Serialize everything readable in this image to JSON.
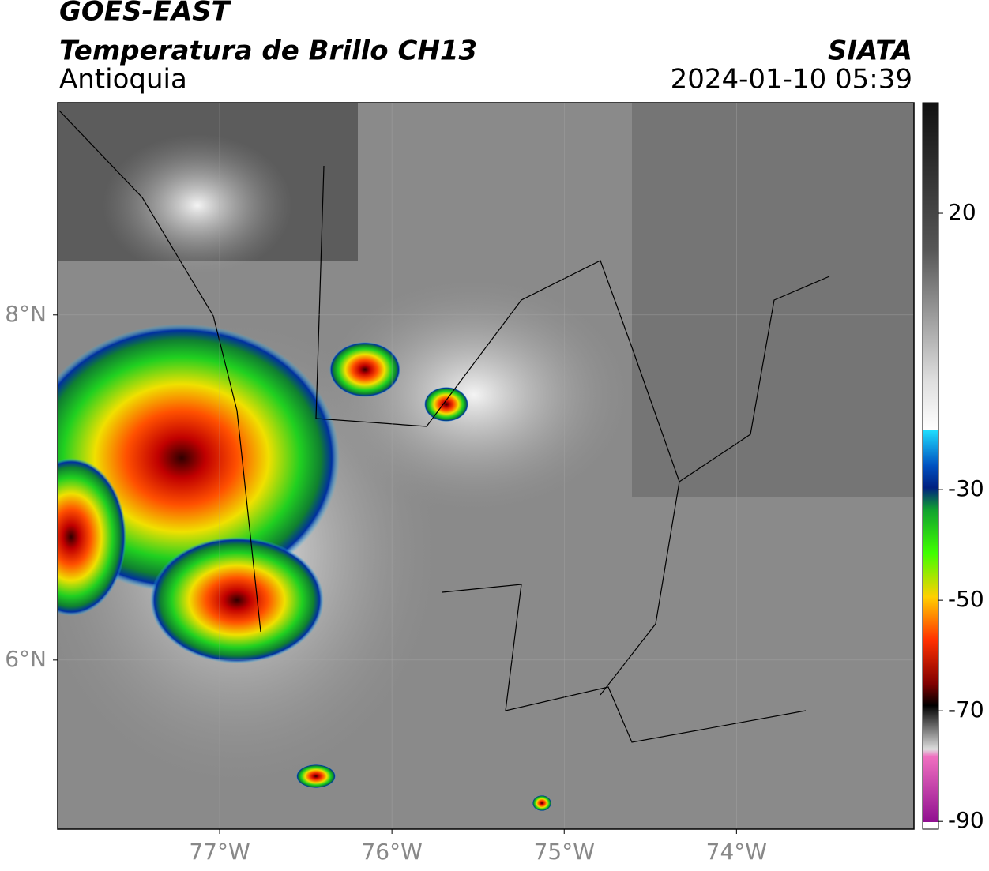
{
  "header": {
    "title": "GOES-EAST",
    "subtitle": "Temperatura de Brillo CH13",
    "region": "Antioquia",
    "source": "SIATA",
    "datetime": "2024-01-10 05:39"
  },
  "map": {
    "xlim": [
      -77.94,
      -72.97
    ],
    "ylim": [
      5.02,
      9.23
    ],
    "xticks": [
      {
        "value": -77,
        "label": "77°W"
      },
      {
        "value": -76,
        "label": "76°W"
      },
      {
        "value": -75,
        "label": "75°W"
      },
      {
        "value": -74,
        "label": "74°W"
      }
    ],
    "yticks": [
      {
        "value": 8,
        "label": "8°N"
      },
      {
        "value": 6,
        "label": "6°N"
      }
    ],
    "grid": true
  },
  "colorbar": {
    "lim": [
      -91.4,
      40
    ],
    "ticks": [
      20,
      -30,
      -50,
      -70,
      -90
    ]
  }
}
